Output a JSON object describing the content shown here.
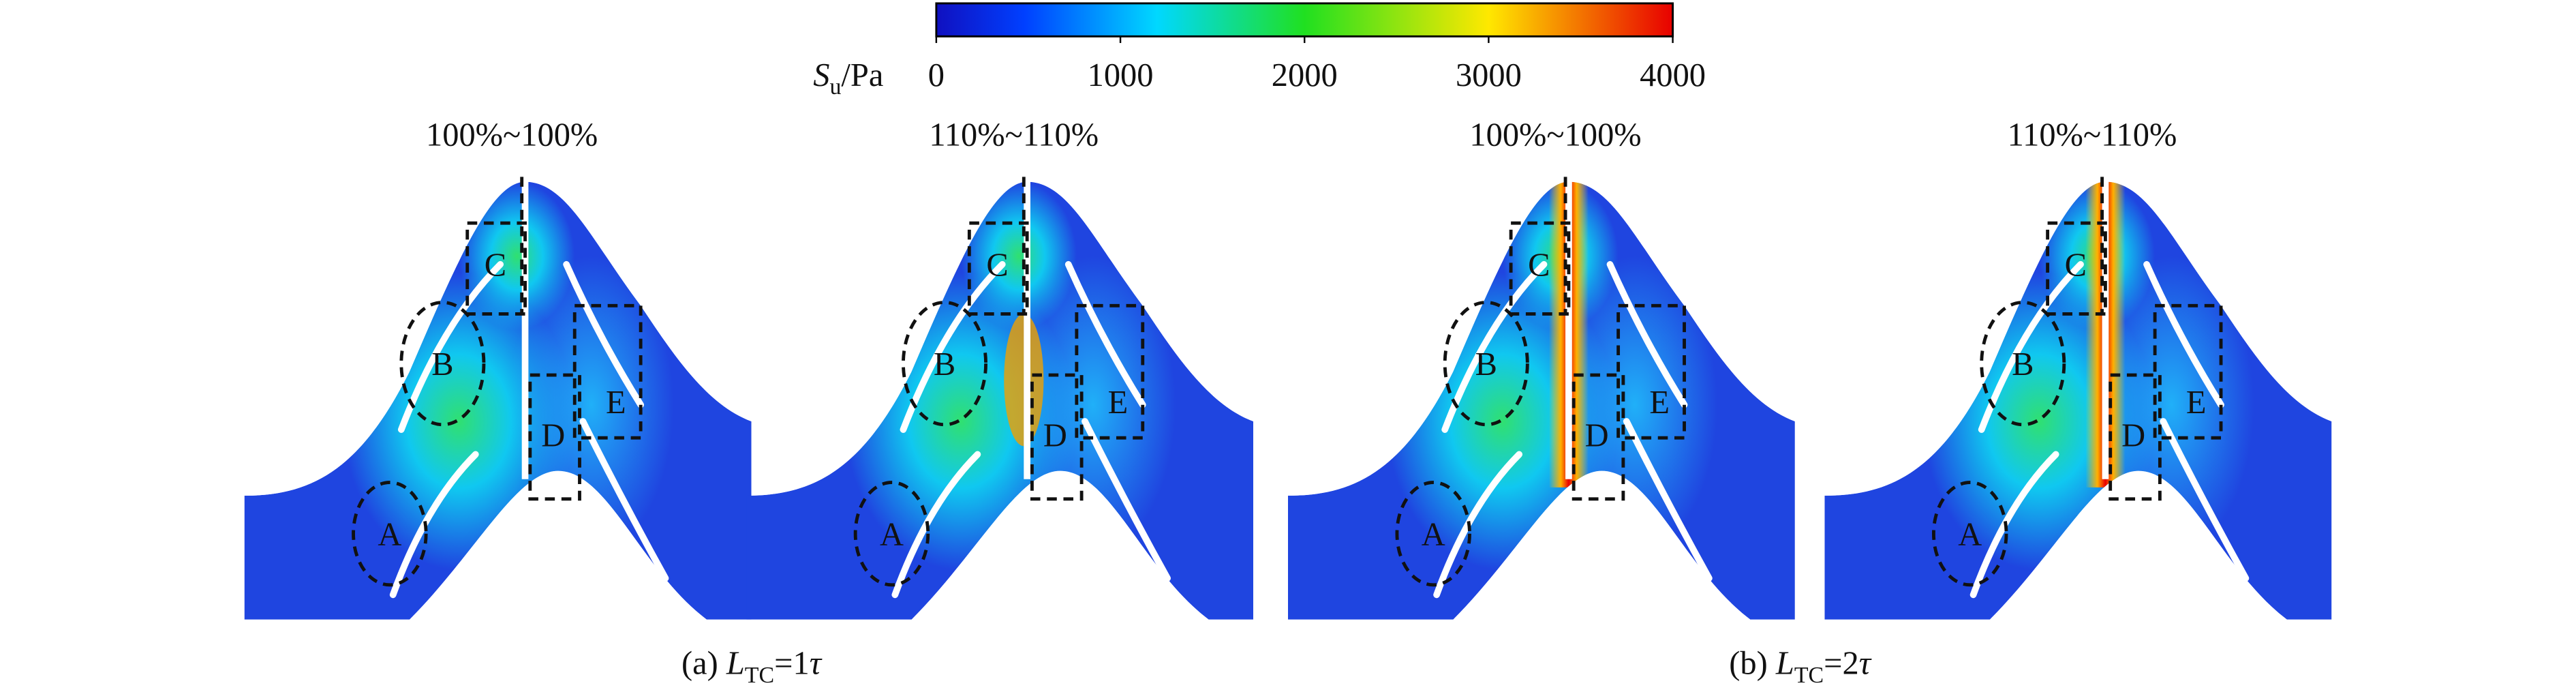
{
  "colorbar": {
    "symbol": "S",
    "subscript": "u",
    "unit": "/Pa",
    "lim": [
      0,
      4000
    ],
    "ticks": [
      0,
      1000,
      2000,
      3000,
      4000
    ]
  },
  "panels": [
    {
      "title": "100%~100%",
      "regions": [
        "A",
        "B",
        "C",
        "D",
        "E"
      ]
    },
    {
      "title": "110%~110%",
      "regions": [
        "A",
        "B",
        "C",
        "D",
        "E"
      ]
    },
    {
      "title": "100%~100%",
      "regions": [
        "A",
        "B",
        "C",
        "D",
        "E"
      ]
    },
    {
      "title": "110%~110%",
      "regions": [
        "A",
        "B",
        "C",
        "D",
        "E"
      ]
    }
  ],
  "captions": [
    {
      "prefix": "(a) ",
      "symbol": "L",
      "subscript": "TC",
      "suffix": "=1",
      "unit": "τ"
    },
    {
      "prefix": "(b) ",
      "symbol": "L",
      "subscript": "TC",
      "suffix": "=2",
      "unit": "τ"
    }
  ]
}
